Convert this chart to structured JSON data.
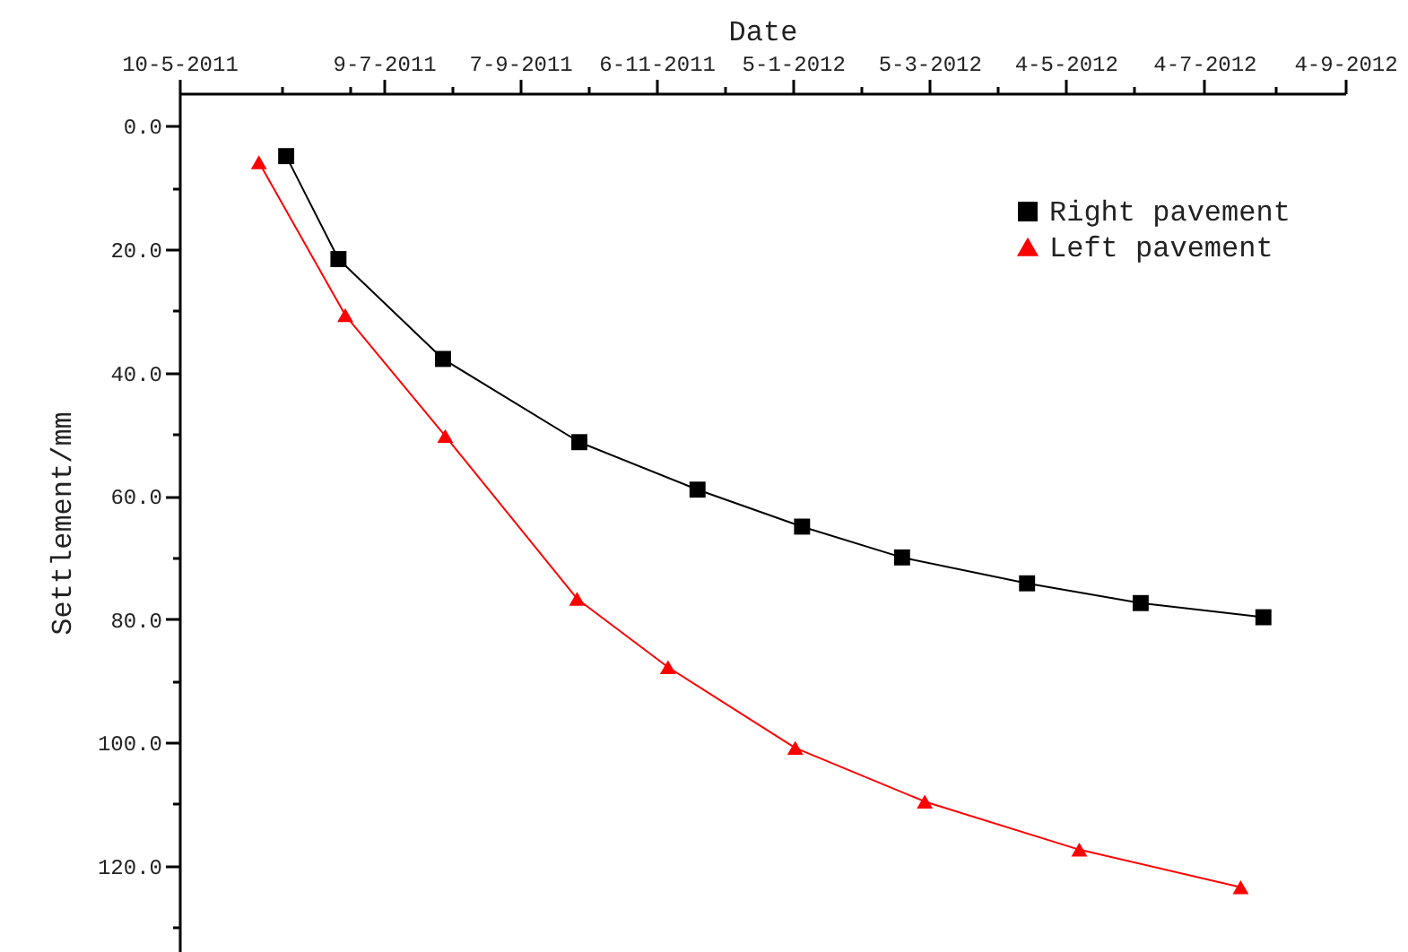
{
  "chart_data": {
    "type": "line",
    "xlabel": "Date",
    "ylabel": "Settlement/mm",
    "xlim": [
      "2011-04-10",
      "2012-09-04"
    ],
    "xticks": [
      {
        "value": "2011-04-10",
        "label": "10-5-2011"
      },
      {
        "value": "2011-05-25",
        "label": null
      },
      {
        "value": "2011-06-24",
        "label": null
      },
      {
        "value": "2011-07-09",
        "label": "9-7-2011"
      },
      {
        "value": "2011-08-08",
        "label": null
      },
      {
        "value": "2011-09-07",
        "label": "7-9-2011"
      },
      {
        "value": "2011-10-07",
        "label": null
      },
      {
        "value": "2011-11-06",
        "label": "6-11-2011"
      },
      {
        "value": "2011-12-06",
        "label": null
      },
      {
        "value": "2012-01-05",
        "label": "5-1-2012"
      },
      {
        "value": "2012-02-04",
        "label": null
      },
      {
        "value": "2012-03-05",
        "label": "5-3-2012"
      },
      {
        "value": "2012-04-04",
        "label": null
      },
      {
        "value": "2012-05-04",
        "label": "4-5-2012"
      },
      {
        "value": "2012-06-03",
        "label": null
      },
      {
        "value": "2012-07-04",
        "label": "4-7-2012"
      },
      {
        "value": "2012-08-04",
        "label": null
      },
      {
        "value": "2012-09-04",
        "label": "4-9-2012"
      }
    ],
    "ylim": [
      134,
      -5.3
    ],
    "yticks": [
      {
        "value": 0,
        "label": "0.0"
      },
      {
        "value": 10,
        "label": null
      },
      {
        "value": 20,
        "label": "20.0"
      },
      {
        "value": 30,
        "label": null
      },
      {
        "value": 40,
        "label": "40.0"
      },
      {
        "value": 50,
        "label": null
      },
      {
        "value": 60,
        "label": "60.0"
      },
      {
        "value": 70,
        "label": null
      },
      {
        "value": 80,
        "label": "80.0"
      },
      {
        "value": 90,
        "label": null
      },
      {
        "value": 100,
        "label": "100.0"
      },
      {
        "value": 110,
        "label": null
      },
      {
        "value": 120,
        "label": "120.0"
      },
      {
        "value": 130,
        "label": null
      }
    ],
    "grid": false,
    "legend": "top right",
    "line_style": "solid",
    "series": [
      {
        "name": "Right pavement",
        "color": "#000000",
        "marker": "square",
        "x": [
          "2011-05-27",
          "2011-06-19",
          "2011-08-04",
          "2011-10-03",
          "2011-11-24",
          "2012-01-09",
          "2012-02-22",
          "2012-04-17",
          "2012-06-06",
          "2012-07-30"
        ],
        "values": [
          4.9,
          21.6,
          37.8,
          51.3,
          59.0,
          65.0,
          70.0,
          74.2,
          77.4,
          79.7
        ]
      },
      {
        "name": "Left pavement",
        "color": "#ff0000",
        "marker": "triangle",
        "x": [
          "2011-05-15",
          "2011-06-22",
          "2011-08-05",
          "2011-10-02",
          "2011-11-11",
          "2012-01-06",
          "2012-03-03",
          "2012-05-10",
          "2012-07-20"
        ],
        "values": [
          5.9,
          30.7,
          50.3,
          76.7,
          87.8,
          100.9,
          109.6,
          117.4,
          123.5
        ]
      }
    ]
  }
}
